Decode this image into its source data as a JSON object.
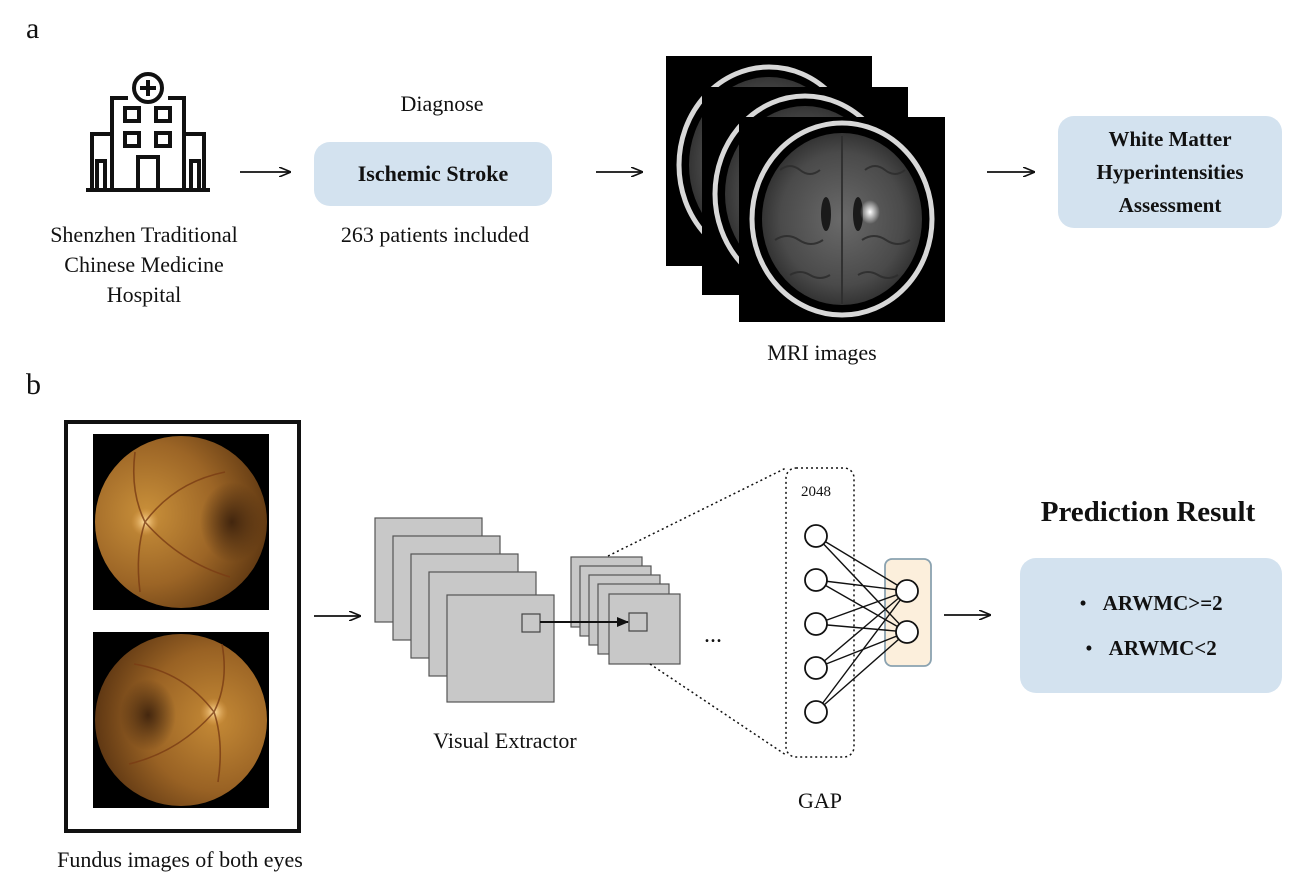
{
  "panel_a": {
    "letter": "a",
    "hospital": {
      "icon": "hospital-icon",
      "label_lines": [
        "Shenzhen Traditional",
        "Chinese Medicine",
        "Hospital"
      ]
    },
    "diagnose_label": "Diagnose",
    "diagnosis": "Ischemic Stroke",
    "patients": "263 patients included",
    "mri": {
      "icon": "brain-mri-icon",
      "label": "MRI images"
    },
    "assessment_lines": [
      "White Matter",
      "Hyperintensities",
      "Assessment"
    ]
  },
  "panel_b": {
    "letter": "b",
    "fundus": {
      "icon": "retina-fundus-icon",
      "label": "Fundus images of both eyes"
    },
    "extractor_label": "Visual Extractor",
    "ellipsis": "...",
    "gap": {
      "count_label": "2048",
      "label": "GAP",
      "input_nodes": 5,
      "output_nodes": 2
    },
    "prediction": {
      "title": "Prediction Result",
      "bullet": "•",
      "items": [
        "ARWMC>=2",
        "ARWMC<2"
      ]
    }
  },
  "colors": {
    "pill_blue": "#d3e2ef",
    "output_box": "#fcefdc",
    "output_border": "#8aa2b0",
    "feature_gray": "#c8c8c8",
    "fundus_bg": "#000000",
    "retina_orange": "#b3782a"
  }
}
